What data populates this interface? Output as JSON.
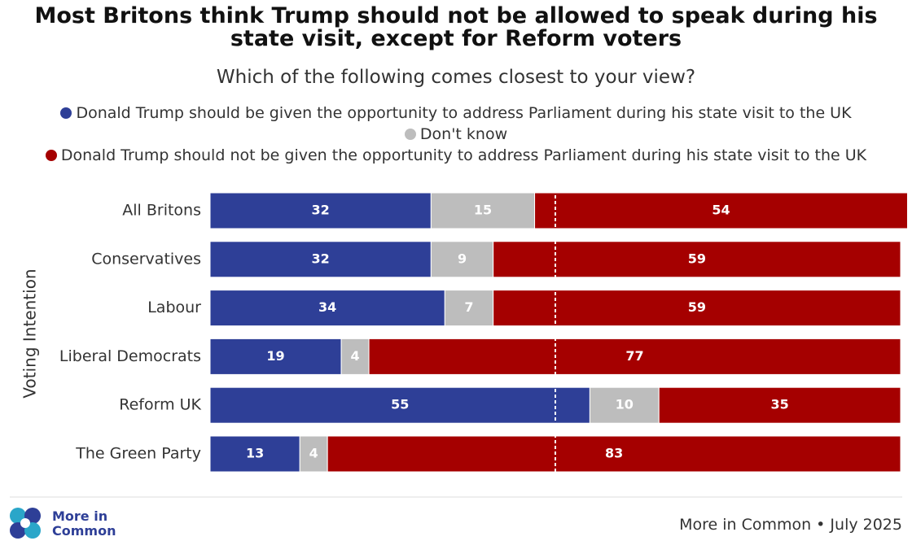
{
  "chart_data": {
    "type": "stacked_bar_horizontal",
    "title": "Most Britons think Trump should not be allowed to speak during his state visit, except for Reform voters",
    "subtitle": "Which of the following comes closest to your view?",
    "y_label": "Voting Intention",
    "categories": [
      "All Britons",
      "Conservatives",
      "Labour",
      "Liberal Democrats",
      "Reform UK",
      "The Green Party"
    ],
    "series": [
      {
        "name": "Donald Trump should be given the opportunity to address Parliament during his state visit to the UK",
        "color": "#2e3f97",
        "values": [
          32,
          32,
          34,
          19,
          55,
          13
        ]
      },
      {
        "name": "Don't know",
        "color": "#bdbdbd",
        "values": [
          15,
          9,
          7,
          4,
          10,
          4
        ]
      },
      {
        "name": "Donald Trump should not be given the opportunity to address Parliament during his state visit to the UK",
        "color": "#a50000",
        "values": [
          54,
          59,
          59,
          77,
          35,
          83
        ]
      }
    ],
    "xlim": [
      0,
      100
    ],
    "reference_line": 50,
    "logo": "More in Common",
    "source": "More in Common • July 2025"
  }
}
